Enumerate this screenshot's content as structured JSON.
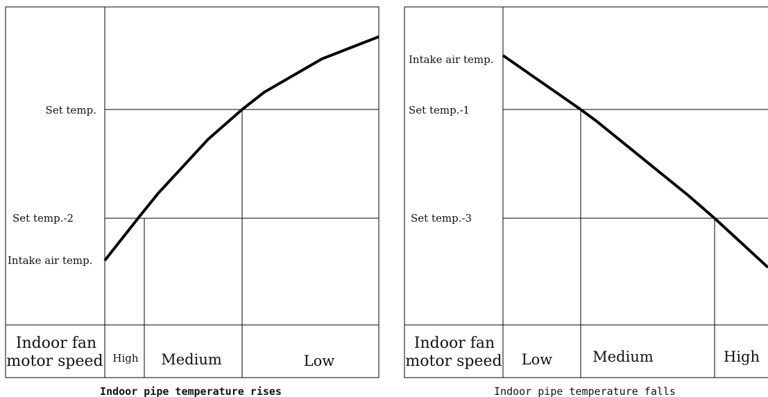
{
  "left_panel": {
    "caption": "Indoor pipe temperature rises",
    "y_labels": {
      "set_temp": "Set temp.",
      "set_temp_minus": "Set temp.-2",
      "intake": "Intake air temp."
    },
    "row_header": {
      "line1": "Indoor fan",
      "line2": "motor speed"
    },
    "speeds": [
      "High",
      "Medium",
      "Low"
    ]
  },
  "right_panel": {
    "caption": "Indoor pipe temperature falls",
    "y_labels": {
      "intake": "Intake air temp.",
      "set_temp_minus1": "Set temp.-1",
      "set_temp_minus3": "Set temp.-3"
    },
    "row_header": {
      "line1": "Indoor fan",
      "line2": "motor speed"
    },
    "speeds": [
      "Low",
      "Medium",
      "High"
    ]
  },
  "colors": {
    "curve": "#000000",
    "grid": "#000000",
    "text": "#111111"
  }
}
